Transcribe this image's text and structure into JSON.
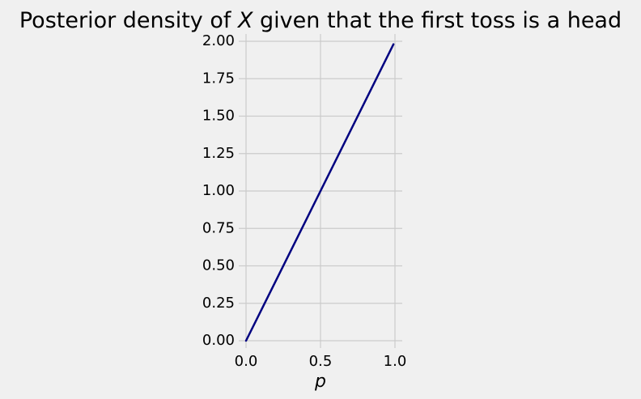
{
  "chart_data": {
    "type": "line",
    "title": {
      "prefix": "Posterior density of ",
      "variable": "X",
      "suffix": " given that the first toss is a head"
    },
    "xlabel": "p",
    "ylabel": "",
    "xlim": [
      0.0,
      1.0
    ],
    "ylim": [
      0.0,
      2.0
    ],
    "x_ticks": [
      {
        "value": 0.0,
        "label": "0.0"
      },
      {
        "value": 0.5,
        "label": "0.5"
      },
      {
        "value": 1.0,
        "label": "1.0"
      }
    ],
    "y_ticks": [
      {
        "value": 0.0,
        "label": "0.00"
      },
      {
        "value": 0.25,
        "label": "0.25"
      },
      {
        "value": 0.5,
        "label": "0.50"
      },
      {
        "value": 0.75,
        "label": "0.75"
      },
      {
        "value": 1.0,
        "label": "1.00"
      },
      {
        "value": 1.25,
        "label": "1.25"
      },
      {
        "value": 1.5,
        "label": "1.50"
      },
      {
        "value": 1.75,
        "label": "1.75"
      },
      {
        "value": 2.0,
        "label": "2.00"
      }
    ],
    "grid": true,
    "series": [
      {
        "color": "#000080",
        "x": [
          0.0,
          0.99
        ],
        "y": [
          0.0,
          1.98
        ]
      }
    ]
  }
}
